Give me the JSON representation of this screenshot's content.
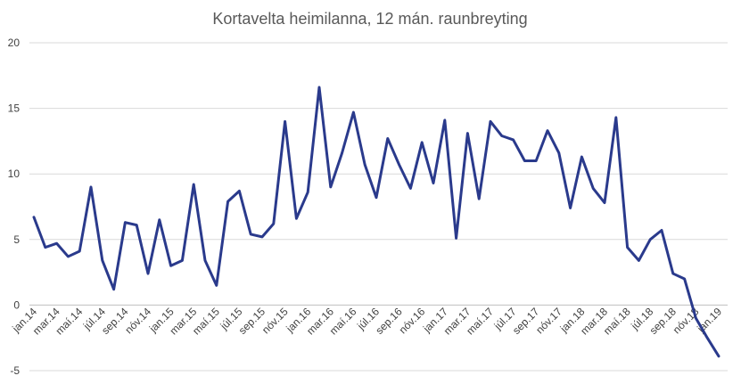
{
  "chart_data": {
    "type": "line",
    "title": "Kortavelta heimilanna, 12 mán. raunbreyting",
    "xlabel": "",
    "ylabel": "",
    "ylim": [
      -5,
      20
    ],
    "yticks": [
      -5,
      0,
      5,
      10,
      15,
      20
    ],
    "grid": true,
    "legend": "none",
    "tick_labels": [
      "jan.14",
      "mar.14",
      "maí.14",
      "júl.14",
      "sep.14",
      "nóv.14",
      "jan.15",
      "mar.15",
      "maí.15",
      "júl.15",
      "sep.15",
      "nóv.15",
      "jan.16",
      "mar.16",
      "maí.16",
      "júl.16",
      "sep.16",
      "nóv.16",
      "jan.17",
      "mar.17",
      "maí.17",
      "júl.17",
      "sep.17",
      "nóv.17",
      "jan.18",
      "mar.18",
      "maí.18",
      "júl.18",
      "sep.18",
      "nóv.18",
      "jan.19"
    ],
    "x": [
      "jan.14",
      "feb.14",
      "mar.14",
      "apr.14",
      "maí.14",
      "jún.14",
      "júl.14",
      "ágú.14",
      "sep.14",
      "okt.14",
      "nóv.14",
      "des.14",
      "jan.15",
      "feb.15",
      "mar.15",
      "apr.15",
      "maí.15",
      "jún.15",
      "júl.15",
      "ágú.15",
      "sep.15",
      "okt.15",
      "nóv.15",
      "des.15",
      "jan.16",
      "feb.16",
      "mar.16",
      "apr.16",
      "maí.16",
      "jún.16",
      "júl.16",
      "ágú.16",
      "sep.16",
      "okt.16",
      "nóv.16",
      "des.16",
      "jan.17",
      "feb.17",
      "mar.17",
      "apr.17",
      "maí.17",
      "jún.17",
      "júl.17",
      "ágú.17",
      "sep.17",
      "okt.17",
      "nóv.17",
      "des.17",
      "jan.18",
      "feb.18",
      "mar.18",
      "apr.18",
      "maí.18",
      "jún.18",
      "júl.18",
      "ágú.18",
      "sep.18",
      "okt.18",
      "nóv.18",
      "des.18",
      "jan.19"
    ],
    "series": [
      {
        "color": "#2a3a8c",
        "values": [
          6.7,
          4.4,
          4.7,
          3.7,
          4.1,
          9.0,
          3.4,
          1.2,
          6.3,
          6.1,
          2.4,
          6.5,
          3.0,
          3.4,
          9.2,
          3.4,
          1.5,
          7.9,
          8.7,
          5.4,
          5.2,
          6.2,
          14.0,
          6.6,
          8.6,
          16.6,
          9.0,
          11.6,
          14.7,
          10.7,
          8.2,
          12.7,
          10.7,
          8.9,
          12.4,
          9.3,
          14.1,
          5.1,
          13.1,
          8.1,
          14.0,
          12.9,
          12.6,
          11.0,
          11.0,
          13.3,
          11.6,
          7.4,
          11.3,
          8.9,
          7.8,
          14.3,
          4.4,
          3.4,
          5.0,
          5.7,
          2.4,
          2.0,
          -1.0,
          -2.5,
          -3.9
        ]
      }
    ]
  }
}
